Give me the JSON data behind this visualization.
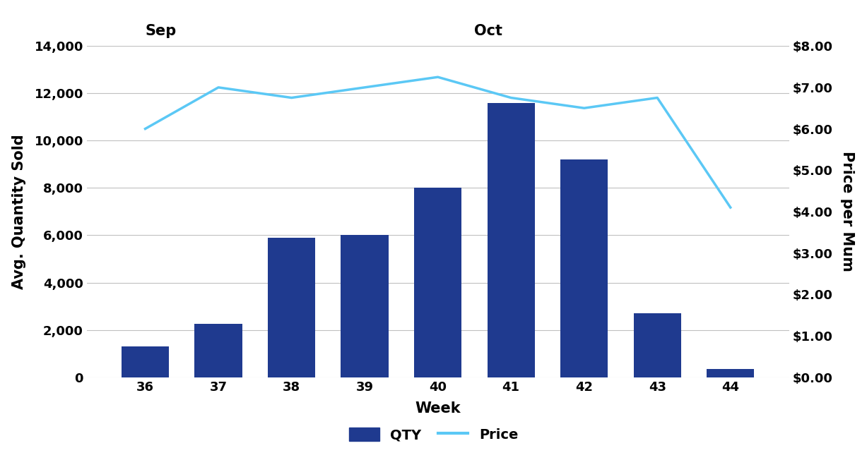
{
  "weeks": [
    36,
    37,
    38,
    39,
    40,
    41,
    42,
    43,
    44
  ],
  "qty": [
    1300,
    2250,
    5900,
    6000,
    8000,
    11600,
    9200,
    2700,
    350
  ],
  "price": [
    6.0,
    7.0,
    6.75,
    7.0,
    7.25,
    6.75,
    6.5,
    6.75,
    4.1
  ],
  "bar_color": "#1F3A8F",
  "line_color": "#5BC8F5",
  "ylabel_left": "Avg. Quantity Sold",
  "ylabel_right": "Price per Mum",
  "xlabel": "Week",
  "ylim_left": [
    0,
    14000
  ],
  "ylim_right": [
    0,
    8.0
  ],
  "yticks_left": [
    0,
    2000,
    4000,
    6000,
    8000,
    10000,
    12000,
    14000
  ],
  "yticks_right": [
    0.0,
    1.0,
    2.0,
    3.0,
    4.0,
    5.0,
    6.0,
    7.0,
    8.0
  ],
  "sep_label": "Sep",
  "oct_label": "Oct",
  "sep_x": 36.0,
  "oct_x": 40.5,
  "legend_qty": "QTY",
  "legend_price": "Price",
  "background_color": "#FFFFFF",
  "grid_color": "#C0C0C0",
  "line_width": 2.5,
  "tick_label_fontsize": 13,
  "axis_label_fontsize": 15,
  "month_label_fontsize": 15,
  "legend_fontsize": 14,
  "bar_width": 0.65,
  "xlim": [
    35.2,
    44.8
  ]
}
